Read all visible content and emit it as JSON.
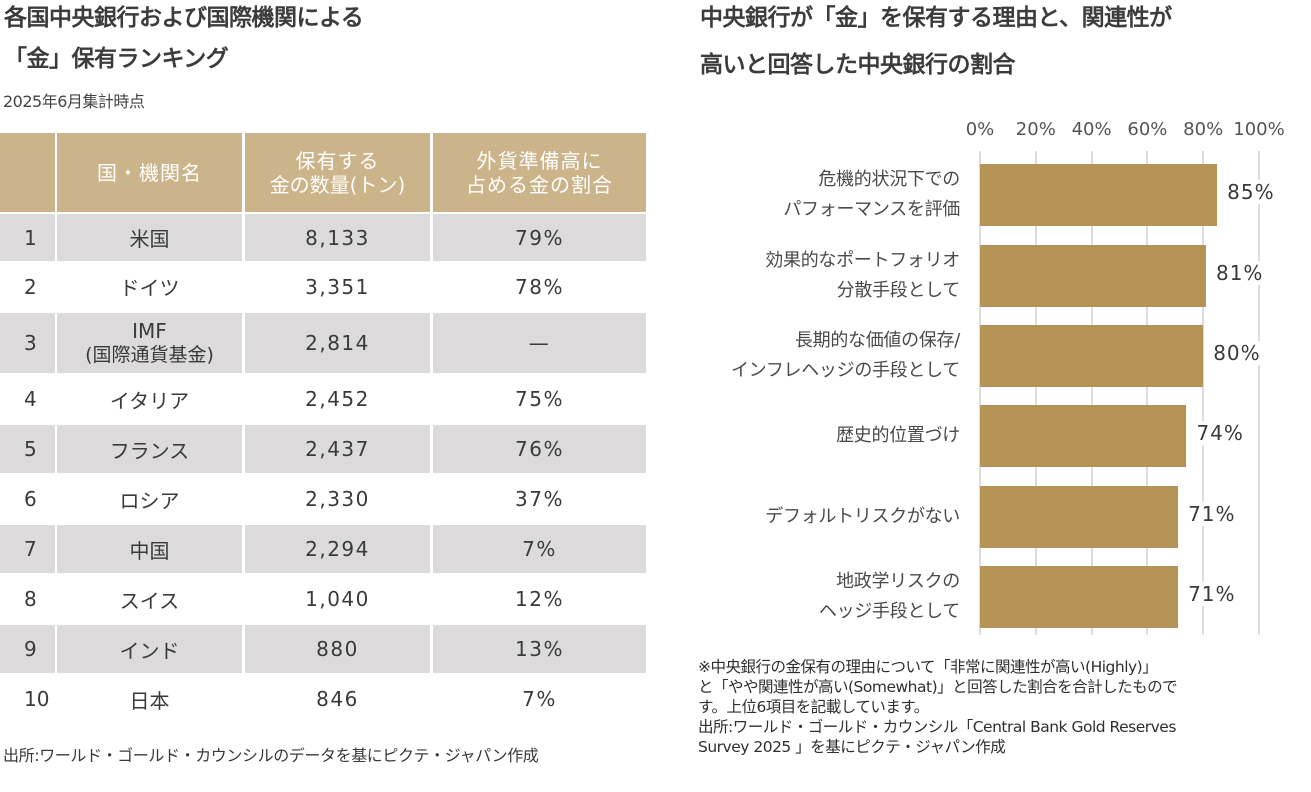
{
  "left": {
    "title_line1": "各国中央銀行および国際機関による",
    "title_line2": "「金」保有ランキング",
    "subtitle": "2025年6月集計時点",
    "table": {
      "headers": [
        "",
        "国・機関名",
        "保有する\n金の数量(トン)",
        "外貨準備高に\n占める金の割合"
      ],
      "header_lines": {
        "name": "国・機関名",
        "qty_1": "保有する",
        "qty_2": "金の数量(トン)",
        "share_1": "外貨準備高に",
        "share_2": "占める金の割合"
      },
      "rows": [
        {
          "rank": "1",
          "name": "米国",
          "name_sub": "",
          "qty": "8,133",
          "share": "79%"
        },
        {
          "rank": "2",
          "name": "ドイツ",
          "name_sub": "",
          "qty": "3,351",
          "share": "78%"
        },
        {
          "rank": "3",
          "name": "IMF",
          "name_sub": "(国際通貨基金)",
          "qty": "2,814",
          "share": "—"
        },
        {
          "rank": "4",
          "name": "イタリア",
          "name_sub": "",
          "qty": "2,452",
          "share": "75%"
        },
        {
          "rank": "5",
          "name": "フランス",
          "name_sub": "",
          "qty": "2,437",
          "share": "76%"
        },
        {
          "rank": "6",
          "name": "ロシア",
          "name_sub": "",
          "qty": "2,330",
          "share": "37%"
        },
        {
          "rank": "7",
          "name": "中国",
          "name_sub": "",
          "qty": "2,294",
          "share": "7%"
        },
        {
          "rank": "8",
          "name": "スイス",
          "name_sub": "",
          "qty": "1,040",
          "share": "12%"
        },
        {
          "rank": "9",
          "name": "インド",
          "name_sub": "",
          "qty": "880",
          "share": "13%"
        },
        {
          "rank": "10",
          "name": "日本",
          "name_sub": "",
          "qty": "846",
          "share": "7%"
        }
      ]
    },
    "source": "出所:ワールド・ゴールド・カウンシルのデータを基にピクテ・ジャパン作成"
  },
  "right": {
    "title_line1": "中央銀行が「金」を保有する理由と、関連性が",
    "title_line2": "高いと回答した中央銀行の割合",
    "note_lines": [
      "※中央銀行の金保有の理由について「非常に関連性が高い(Highly)」",
      "と「やや関連性が高い(Somewhat)」と回答した割合を合計したもので",
      "す。上位6項目を記載しています。",
      "出所:ワールド・ゴールド・カウンシル「Central Bank Gold Reserves",
      "Survey 2025 」を基にピクテ・ジャパン作成"
    ]
  },
  "colors": {
    "header_bg": "#cbb48a",
    "row_shade": "#dcdadb",
    "bar": "#b59256",
    "grid": "#dcdcdc"
  },
  "chart_data": {
    "type": "bar",
    "orientation": "horizontal",
    "title": "中央銀行が「金」を保有する理由と、関連性が高いと回答した中央銀行の割合",
    "categories": [
      [
        "危機的状況下での",
        "パフォーマンスを評価"
      ],
      [
        "効果的なポートフォリオ",
        "分散手段として"
      ],
      [
        "長期的な価値の保存/",
        "インフレヘッジの手段として"
      ],
      [
        "歴史的位置づけ"
      ],
      [
        "デフォルトリスクがない"
      ],
      [
        "地政学リスクの",
        "ヘッジ手段として"
      ]
    ],
    "values": [
      85,
      81,
      80,
      74,
      71,
      71
    ],
    "value_labels": [
      "85%",
      "81%",
      "80%",
      "74%",
      "71%",
      "71%"
    ],
    "xlim": [
      0,
      100
    ],
    "xticks": [
      0,
      20,
      40,
      60,
      80,
      100
    ],
    "xtick_labels": [
      "0%",
      "20%",
      "40%",
      "60%",
      "80%",
      "100%"
    ],
    "xaxis_position": "top",
    "grid": true,
    "legend": "none",
    "xlabel": "",
    "ylabel": ""
  }
}
